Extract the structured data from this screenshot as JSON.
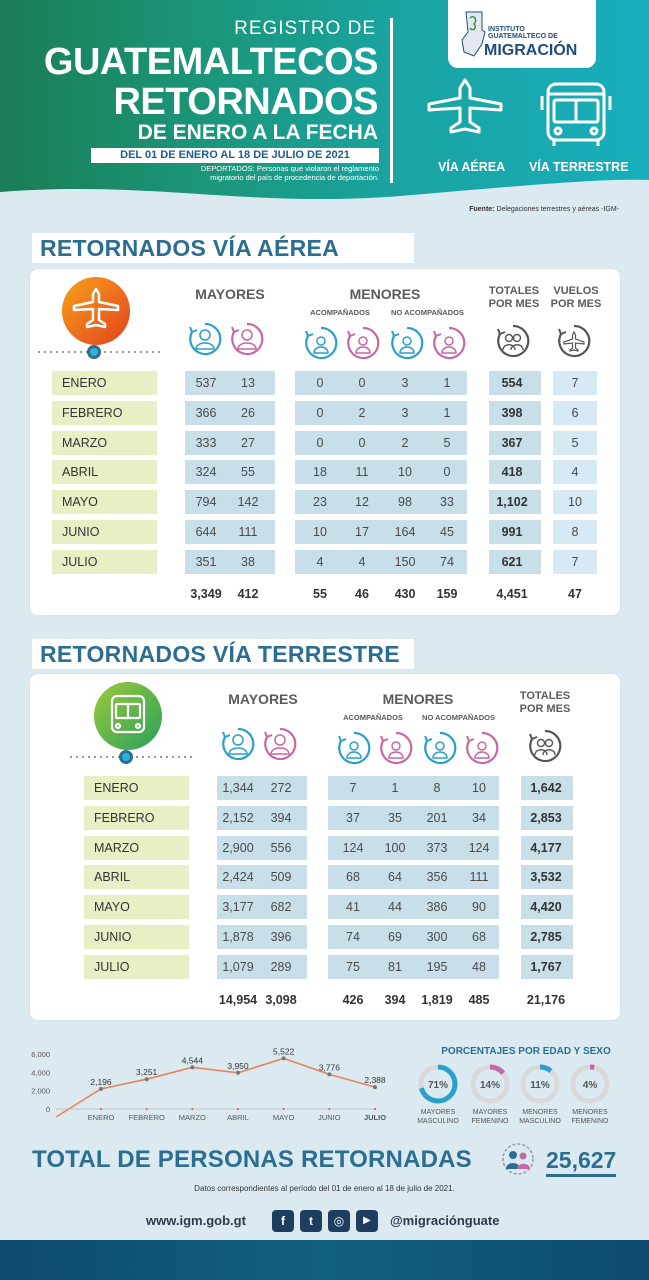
{
  "header": {
    "registro": "REGISTRO DE",
    "line1": "GUATEMALTECOS",
    "line2": "RETORNADOS",
    "line3": "DE ENERO A LA FECHA",
    "date": "DEL 01 DE ENERO AL 18 DE JULIO DE 2021",
    "deportados_1": "DEPORTADOS: Personas que violaron el reglamento",
    "deportados_2": "migratorio del país de procedencia de deportación.",
    "logo_line1": "INSTITUTO",
    "logo_line2": "GUATEMALTECO DE",
    "logo_line3": "MIGRACIÓN",
    "via_aerea": "VÍA AÉREA",
    "via_terrestre": "VÍA TERRESTRE"
  },
  "source": {
    "label": "Fuente:",
    "text": "Delegaciones terrestres y aéreas -IGM-"
  },
  "aerea": {
    "title": "RETORNADOS VÍA AÉREA",
    "h_mayores": "MAYORES",
    "h_menores": "MENORES",
    "h_acomp": "ACOMPAÑADOS",
    "h_noacomp": "NO ACOMPAÑADOS",
    "h_totales": "TOTALES",
    "h_porMes": "POR MES",
    "h_vuelos": "VUELOS",
    "h_vuelosPorMes": "POR MES",
    "rows": [
      {
        "mes": "ENERO",
        "mm": "537",
        "mf": "13",
        "am": "0",
        "af": "0",
        "nm": "3",
        "nf": "1",
        "tot": "554",
        "vue": "7"
      },
      {
        "mes": "FEBRERO",
        "mm": "366",
        "mf": "26",
        "am": "0",
        "af": "2",
        "nm": "3",
        "nf": "1",
        "tot": "398",
        "vue": "6"
      },
      {
        "mes": "MARZO",
        "mm": "333",
        "mf": "27",
        "am": "0",
        "af": "0",
        "nm": "2",
        "nf": "5",
        "tot": "367",
        "vue": "5"
      },
      {
        "mes": "ABRIL",
        "mm": "324",
        "mf": "55",
        "am": "18",
        "af": "11",
        "nm": "10",
        "nf": "0",
        "tot": "418",
        "vue": "4"
      },
      {
        "mes": "MAYO",
        "mm": "794",
        "mf": "142",
        "am": "23",
        "af": "12",
        "nm": "98",
        "nf": "33",
        "tot": "1,102",
        "vue": "10"
      },
      {
        "mes": "JUNIO",
        "mm": "644",
        "mf": "111",
        "am": "10",
        "af": "17",
        "nm": "164",
        "nf": "45",
        "tot": "991",
        "vue": "8"
      },
      {
        "mes": "JULIO",
        "mm": "351",
        "mf": "38",
        "am": "4",
        "af": "4",
        "nm": "150",
        "nf": "74",
        "tot": "621",
        "vue": "7"
      }
    ],
    "totals": {
      "mm": "3,349",
      "mf": "412",
      "am": "55",
      "af": "46",
      "nm": "430",
      "nf": "159",
      "tot": "4,451",
      "vue": "47"
    }
  },
  "terrestre": {
    "title": "RETORNADOS VÍA TERRESTRE",
    "h_mayores": "MAYORES",
    "h_menores": "MENORES",
    "h_acomp": "ACOMPAÑADOS",
    "h_noacomp": "NO ACOMPAÑADOS",
    "h_totales": "TOTALES",
    "h_porMes": "POR MES",
    "rows": [
      {
        "mes": "ENERO",
        "mm": "1,344",
        "mf": "272",
        "am": "7",
        "af": "1",
        "nm": "8",
        "nf": "10",
        "tot": "1,642"
      },
      {
        "mes": "FEBRERO",
        "mm": "2,152",
        "mf": "394",
        "am": "37",
        "af": "35",
        "nm": "201",
        "nf": "34",
        "tot": "2,853"
      },
      {
        "mes": "MARZO",
        "mm": "2,900",
        "mf": "556",
        "am": "124",
        "af": "100",
        "nm": "373",
        "nf": "124",
        "tot": "4,177"
      },
      {
        "mes": "ABRIL",
        "mm": "2,424",
        "mf": "509",
        "am": "68",
        "af": "64",
        "nm": "356",
        "nf": "111",
        "tot": "3,532"
      },
      {
        "mes": "MAYO",
        "mm": "3,177",
        "mf": "682",
        "am": "41",
        "af": "44",
        "nm": "386",
        "nf": "90",
        "tot": "4,420"
      },
      {
        "mes": "JUNIO",
        "mm": "1,878",
        "mf": "396",
        "am": "74",
        "af": "69",
        "nm": "300",
        "nf": "68",
        "tot": "2,785"
      },
      {
        "mes": "JULIO",
        "mm": "1,079",
        "mf": "289",
        "am": "75",
        "af": "81",
        "nm": "195",
        "nf": "48",
        "tot": "1,767"
      }
    ],
    "totals": {
      "mm": "14,954",
      "mf": "3,098",
      "am": "426",
      "af": "394",
      "nm": "1,819",
      "nf": "485",
      "tot": "21,176"
    }
  },
  "chart_data": {
    "type": "line",
    "title": "",
    "categories": [
      "ENERO",
      "FEBRERO",
      "MARZO",
      "ABRIL",
      "MAYO",
      "JUNIO",
      "JULIO"
    ],
    "values": [
      2196,
      3251,
      4544,
      3950,
      5522,
      3776,
      2388
    ],
    "labels": [
      "2,196",
      "3,251",
      "4,544",
      "3,950",
      "5,522",
      "3,776",
      "2,388"
    ],
    "yticks": [
      "6,000",
      "4,000",
      "2,000",
      "0"
    ],
    "ylim": [
      0,
      6000
    ],
    "color": "#e8835a"
  },
  "porcentajes": {
    "title": "PORCENTAJES POR EDAD Y SEXO",
    "items": [
      {
        "pct": "71%",
        "value": 71,
        "l1": "MAYORES",
        "l2": "MASCULINO",
        "color": "#2a9fc9"
      },
      {
        "pct": "14%",
        "value": 14,
        "l1": "MAYORES",
        "l2": "FEMENINO",
        "color": "#c667a6"
      },
      {
        "pct": "11%",
        "value": 11,
        "l1": "MENORES",
        "l2": "MASCULINO",
        "color": "#2a9fc9"
      },
      {
        "pct": "4%",
        "value": 4,
        "l1": "MENORES",
        "l2": "FEMENINO",
        "color": "#c667a6"
      }
    ]
  },
  "total": {
    "title": "TOTAL DE PERSONAS RETORNADAS",
    "value": "25,627",
    "note": "Datos correspondientes al período del 01 de enero al 18 de julio de 2021."
  },
  "footer": {
    "web": "www.igm.gob.gt",
    "handle": "@migraciónguate",
    "fb": "f",
    "tw": "t",
    "ig": "◎",
    "yt": "▶"
  }
}
